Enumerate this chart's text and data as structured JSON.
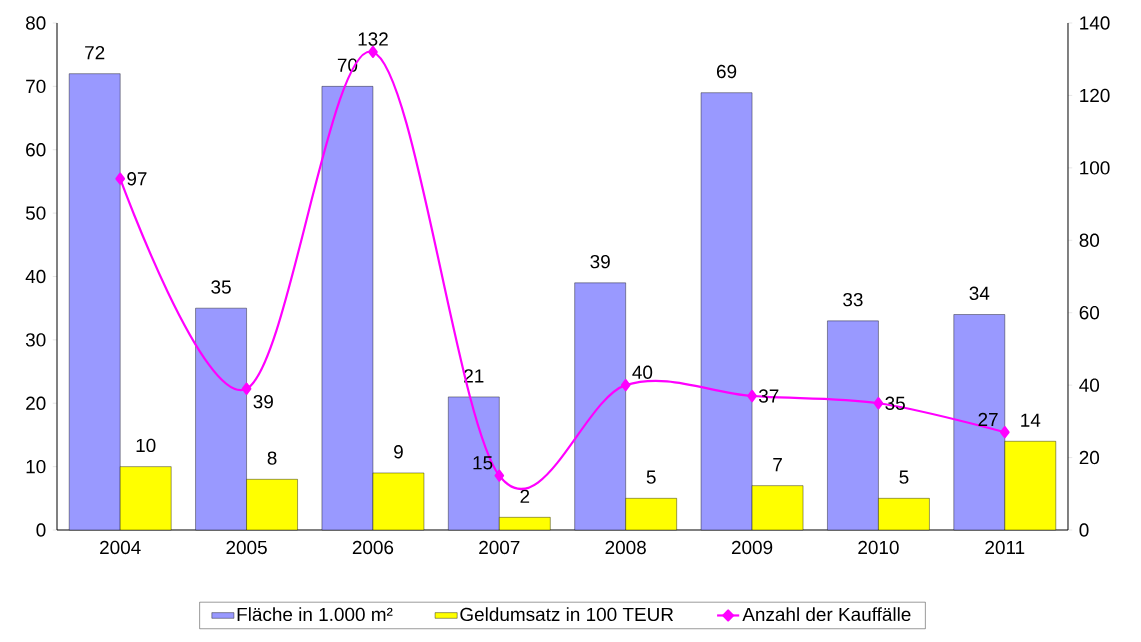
{
  "chart_data": {
    "type": "bar",
    "categories": [
      "2004",
      "2005",
      "2006",
      "2007",
      "2008",
      "2009",
      "2010",
      "2011"
    ],
    "series": [
      {
        "name": "Fläche in 1.000 m²",
        "color": "#9999ff",
        "values": [
          72,
          35,
          70,
          21,
          39,
          69,
          33,
          34
        ]
      },
      {
        "name": "Geldumsatz in 100 TEUR",
        "color": "#ffff00",
        "values": [
          10,
          8,
          9,
          2,
          5,
          7,
          5,
          14
        ]
      },
      {
        "name": "Anzahl der Kauffälle",
        "type": "line",
        "axis": "y2",
        "color": "#ff00ff",
        "marker": "diamond",
        "values": [
          97,
          39,
          132,
          15,
          40,
          37,
          35,
          27
        ]
      }
    ],
    "ylim": [
      0,
      80
    ],
    "yticks": [
      0,
      10,
      20,
      30,
      40,
      50,
      60,
      70,
      80
    ],
    "y2lim": [
      0,
      140
    ],
    "y2ticks": [
      0,
      20,
      40,
      60,
      80,
      100,
      120,
      140
    ],
    "data_labels": true,
    "legend": "bottom"
  }
}
